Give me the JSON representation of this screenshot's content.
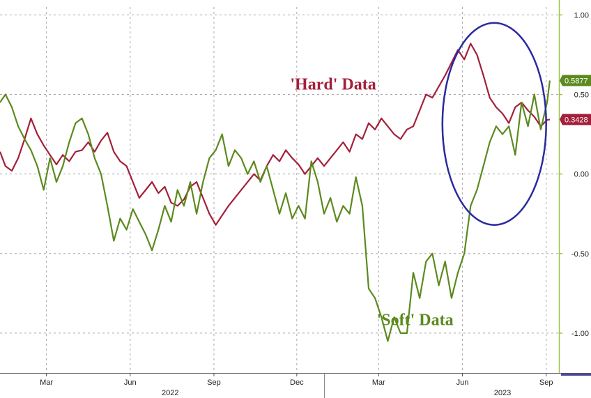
{
  "colors": {
    "hard": "#a3203a",
    "soft": "#5c8a1e",
    "circle": "#2a2aa0",
    "axis": "#9ac24a"
  },
  "chart_data": {
    "type": "line",
    "ylim": [
      -1.25,
      1.05
    ],
    "xlim": [
      "2022-01-09",
      "2023-09-15"
    ],
    "grid": true,
    "y_ticks": [
      {
        "value": 1.0,
        "label": "1.00"
      },
      {
        "value": 0.5,
        "label": "0.50"
      },
      {
        "value": 0.0,
        "label": "0.00"
      },
      {
        "value": -0.5,
        "label": "-0.50"
      },
      {
        "value": -1.0,
        "label": "-1.00"
      }
    ],
    "x_ticks": [
      {
        "date": "2022-03-01",
        "label": "Mar"
      },
      {
        "date": "2022-06-01",
        "label": "Jun"
      },
      {
        "date": "2022-09-01",
        "label": "Sep"
      },
      {
        "date": "2022-12-01",
        "label": "Dec"
      },
      {
        "date": "2023-03-01",
        "label": "Mar"
      },
      {
        "date": "2023-06-01",
        "label": "Jun"
      },
      {
        "date": "2023-09-01",
        "label": "Sep"
      }
    ],
    "year_labels": [
      {
        "date": "2022-07-15",
        "label": "2022"
      },
      {
        "date": "2023-07-15",
        "label": "2023"
      }
    ],
    "annotations": [
      {
        "text": "'Hard' Data",
        "series": "hard",
        "date": "2023-01-10",
        "y": 0.53
      },
      {
        "text": "'Soft' Data",
        "series": "soft",
        "date": "2023-04-10",
        "y": -0.95
      }
    ],
    "highlight_ellipse": {
      "date_from": "2023-05-10",
      "date_to": "2023-09-01",
      "y_from": -0.32,
      "y_to": 0.95
    },
    "series": [
      {
        "key": "hard",
        "last_label": "0.3428",
        "points": [
          [
            "2022-01-09",
            0.14
          ],
          [
            "2022-01-15",
            0.05
          ],
          [
            "2022-01-22",
            0.02
          ],
          [
            "2022-01-29",
            0.1
          ],
          [
            "2022-02-05",
            0.22
          ],
          [
            "2022-02-12",
            0.35
          ],
          [
            "2022-02-19",
            0.25
          ],
          [
            "2022-02-26",
            0.18
          ],
          [
            "2022-03-05",
            0.12
          ],
          [
            "2022-03-12",
            0.06
          ],
          [
            "2022-03-19",
            0.12
          ],
          [
            "2022-03-26",
            0.08
          ],
          [
            "2022-04-02",
            0.14
          ],
          [
            "2022-04-09",
            0.15
          ],
          [
            "2022-04-16",
            0.2
          ],
          [
            "2022-04-23",
            0.14
          ],
          [
            "2022-04-30",
            0.21
          ],
          [
            "2022-05-07",
            0.26
          ],
          [
            "2022-05-14",
            0.14
          ],
          [
            "2022-05-21",
            0.08
          ],
          [
            "2022-05-28",
            0.05
          ],
          [
            "2022-06-04",
            -0.05
          ],
          [
            "2022-06-11",
            -0.15
          ],
          [
            "2022-06-18",
            -0.1
          ],
          [
            "2022-06-25",
            -0.05
          ],
          [
            "2022-07-02",
            -0.12
          ],
          [
            "2022-07-09",
            -0.08
          ],
          [
            "2022-07-16",
            -0.18
          ],
          [
            "2022-07-23",
            -0.2
          ],
          [
            "2022-07-30",
            -0.16
          ],
          [
            "2022-08-06",
            -0.08
          ],
          [
            "2022-08-13",
            -0.05
          ],
          [
            "2022-08-20",
            -0.15
          ],
          [
            "2022-08-27",
            -0.25
          ],
          [
            "2022-09-03",
            -0.32
          ],
          [
            "2022-09-10",
            -0.26
          ],
          [
            "2022-09-17",
            -0.2
          ],
          [
            "2022-09-24",
            -0.15
          ],
          [
            "2022-10-01",
            -0.1
          ],
          [
            "2022-10-08",
            -0.05
          ],
          [
            "2022-10-15",
            0.0
          ],
          [
            "2022-10-22",
            -0.04
          ],
          [
            "2022-10-29",
            0.05
          ],
          [
            "2022-11-05",
            0.12
          ],
          [
            "2022-11-12",
            0.08
          ],
          [
            "2022-11-19",
            0.15
          ],
          [
            "2022-11-26",
            0.1
          ],
          [
            "2022-12-03",
            0.06
          ],
          [
            "2022-12-10",
            0.0
          ],
          [
            "2022-12-17",
            0.05
          ],
          [
            "2022-12-24",
            0.1
          ],
          [
            "2022-12-31",
            0.05
          ],
          [
            "2023-01-07",
            0.1
          ],
          [
            "2023-01-14",
            0.15
          ],
          [
            "2023-01-21",
            0.2
          ],
          [
            "2023-01-28",
            0.14
          ],
          [
            "2023-02-04",
            0.25
          ],
          [
            "2023-02-11",
            0.22
          ],
          [
            "2023-02-18",
            0.32
          ],
          [
            "2023-02-25",
            0.28
          ],
          [
            "2023-03-04",
            0.35
          ],
          [
            "2023-03-11",
            0.3
          ],
          [
            "2023-03-18",
            0.25
          ],
          [
            "2023-03-25",
            0.22
          ],
          [
            "2023-04-01",
            0.28
          ],
          [
            "2023-04-08",
            0.3
          ],
          [
            "2023-04-15",
            0.4
          ],
          [
            "2023-04-22",
            0.5
          ],
          [
            "2023-04-29",
            0.48
          ],
          [
            "2023-05-06",
            0.55
          ],
          [
            "2023-05-13",
            0.62
          ],
          [
            "2023-05-20",
            0.7
          ],
          [
            "2023-05-27",
            0.78
          ],
          [
            "2023-06-03",
            0.72
          ],
          [
            "2023-06-10",
            0.82
          ],
          [
            "2023-06-17",
            0.75
          ],
          [
            "2023-06-24",
            0.62
          ],
          [
            "2023-07-01",
            0.48
          ],
          [
            "2023-07-08",
            0.42
          ],
          [
            "2023-07-15",
            0.38
          ],
          [
            "2023-07-22",
            0.32
          ],
          [
            "2023-07-29",
            0.42
          ],
          [
            "2023-08-05",
            0.45
          ],
          [
            "2023-08-12",
            0.4
          ],
          [
            "2023-08-19",
            0.36
          ],
          [
            "2023-08-26",
            0.3
          ],
          [
            "2023-09-02",
            0.34
          ],
          [
            "2023-09-05",
            0.3428
          ]
        ]
      },
      {
        "key": "soft",
        "last_label": "0.5877",
        "points": [
          [
            "2022-01-09",
            0.45
          ],
          [
            "2022-01-15",
            0.5
          ],
          [
            "2022-01-22",
            0.42
          ],
          [
            "2022-01-29",
            0.3
          ],
          [
            "2022-02-05",
            0.22
          ],
          [
            "2022-02-12",
            0.15
          ],
          [
            "2022-02-19",
            0.05
          ],
          [
            "2022-02-26",
            -0.1
          ],
          [
            "2022-03-05",
            0.1
          ],
          [
            "2022-03-12",
            -0.05
          ],
          [
            "2022-03-19",
            0.05
          ],
          [
            "2022-03-26",
            0.2
          ],
          [
            "2022-04-02",
            0.32
          ],
          [
            "2022-04-09",
            0.35
          ],
          [
            "2022-04-16",
            0.25
          ],
          [
            "2022-04-23",
            0.1
          ],
          [
            "2022-04-30",
            0.0
          ],
          [
            "2022-05-07",
            -0.2
          ],
          [
            "2022-05-14",
            -0.42
          ],
          [
            "2022-05-21",
            -0.28
          ],
          [
            "2022-05-28",
            -0.35
          ],
          [
            "2022-06-04",
            -0.22
          ],
          [
            "2022-06-11",
            -0.3
          ],
          [
            "2022-06-18",
            -0.38
          ],
          [
            "2022-06-25",
            -0.48
          ],
          [
            "2022-07-02",
            -0.35
          ],
          [
            "2022-07-09",
            -0.2
          ],
          [
            "2022-07-16",
            -0.3
          ],
          [
            "2022-07-23",
            -0.1
          ],
          [
            "2022-07-30",
            -0.2
          ],
          [
            "2022-08-06",
            -0.05
          ],
          [
            "2022-08-13",
            -0.25
          ],
          [
            "2022-08-20",
            -0.05
          ],
          [
            "2022-08-27",
            0.1
          ],
          [
            "2022-09-03",
            0.15
          ],
          [
            "2022-09-10",
            0.25
          ],
          [
            "2022-09-17",
            0.05
          ],
          [
            "2022-09-24",
            0.15
          ],
          [
            "2022-10-01",
            0.1
          ],
          [
            "2022-10-08",
            0.0
          ],
          [
            "2022-10-15",
            0.08
          ],
          [
            "2022-10-22",
            -0.05
          ],
          [
            "2022-10-29",
            0.05
          ],
          [
            "2022-11-05",
            -0.1
          ],
          [
            "2022-11-12",
            -0.25
          ],
          [
            "2022-11-19",
            -0.12
          ],
          [
            "2022-11-26",
            -0.28
          ],
          [
            "2022-12-03",
            -0.2
          ],
          [
            "2022-12-10",
            -0.28
          ],
          [
            "2022-12-17",
            0.08
          ],
          [
            "2022-12-24",
            -0.05
          ],
          [
            "2022-12-31",
            -0.25
          ],
          [
            "2023-01-07",
            -0.15
          ],
          [
            "2023-01-14",
            -0.3
          ],
          [
            "2023-01-21",
            -0.2
          ],
          [
            "2023-01-28",
            -0.25
          ],
          [
            "2023-02-04",
            -0.02
          ],
          [
            "2023-02-11",
            -0.2
          ],
          [
            "2023-02-18",
            -0.72
          ],
          [
            "2023-02-25",
            -0.78
          ],
          [
            "2023-03-04",
            -0.9
          ],
          [
            "2023-03-11",
            -1.05
          ],
          [
            "2023-03-18",
            -0.9
          ],
          [
            "2023-03-25",
            -1.0
          ],
          [
            "2023-04-01",
            -1.0
          ],
          [
            "2023-04-08",
            -0.62
          ],
          [
            "2023-04-15",
            -0.78
          ],
          [
            "2023-04-22",
            -0.55
          ],
          [
            "2023-04-29",
            -0.5
          ],
          [
            "2023-05-06",
            -0.7
          ],
          [
            "2023-05-13",
            -0.55
          ],
          [
            "2023-05-20",
            -0.78
          ],
          [
            "2023-05-27",
            -0.62
          ],
          [
            "2023-06-03",
            -0.5
          ],
          [
            "2023-06-10",
            -0.2
          ],
          [
            "2023-06-17",
            -0.1
          ],
          [
            "2023-06-24",
            0.05
          ],
          [
            "2023-07-01",
            0.2
          ],
          [
            "2023-07-08",
            0.3
          ],
          [
            "2023-07-15",
            0.25
          ],
          [
            "2023-07-22",
            0.3
          ],
          [
            "2023-07-29",
            0.12
          ],
          [
            "2023-08-05",
            0.45
          ],
          [
            "2023-08-12",
            0.3
          ],
          [
            "2023-08-19",
            0.5
          ],
          [
            "2023-08-26",
            0.28
          ],
          [
            "2023-09-02",
            0.45
          ],
          [
            "2023-09-05",
            0.5877
          ]
        ]
      }
    ]
  }
}
